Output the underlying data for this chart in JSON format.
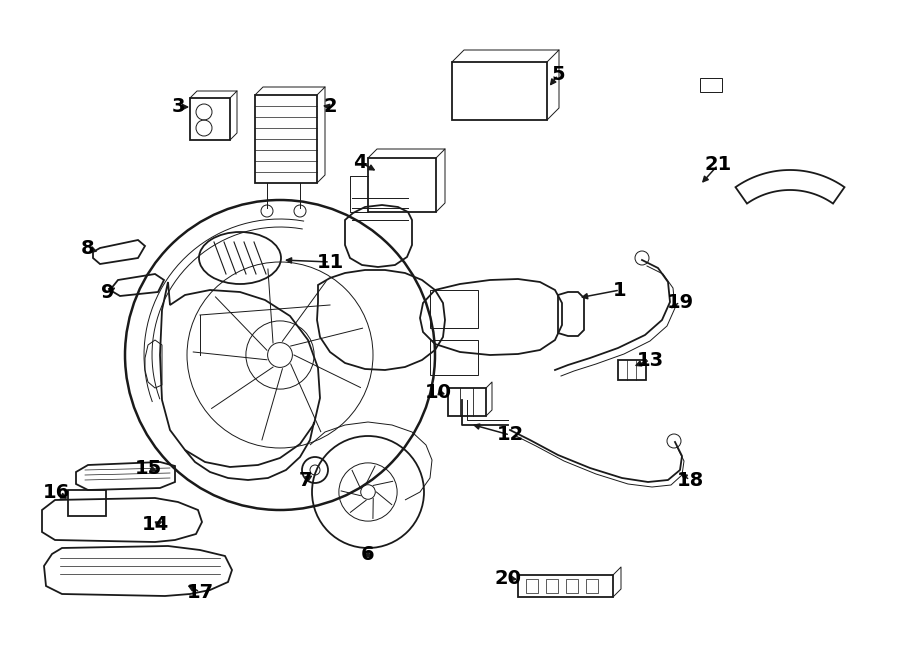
{
  "bg_color": "#ffffff",
  "line_color": "#1a1a1a",
  "lw_main": 1.3,
  "lw_thin": 0.7,
  "lw_thick": 1.8,
  "fig_w": 9.0,
  "fig_h": 6.61,
  "dpi": 100
}
